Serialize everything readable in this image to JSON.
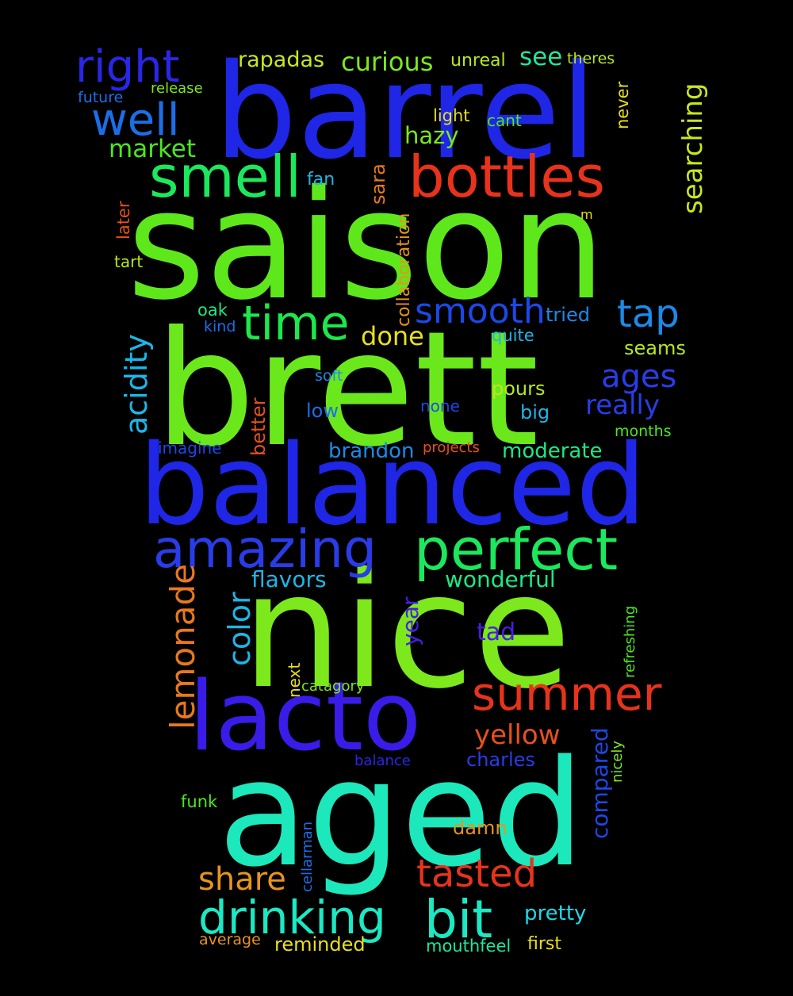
{
  "words": [
    {
      "text": "saison",
      "color": "#5ee81c"
    },
    {
      "text": "barrel",
      "color": "#1f26e6"
    },
    {
      "text": "brett",
      "color": "#6be81c"
    },
    {
      "text": "balanced",
      "color": "#1f26e6"
    },
    {
      "text": "nice",
      "color": "#7de81c"
    },
    {
      "text": "aged",
      "color": "#1ce8bc"
    },
    {
      "text": "lacto",
      "color": "#3a1ce8"
    },
    {
      "text": "bottles",
      "color": "#e8331c"
    },
    {
      "text": "smell",
      "color": "#1ce85e"
    },
    {
      "text": "perfect",
      "color": "#1ce85e"
    },
    {
      "text": "amazing",
      "color": "#2a3ce8"
    },
    {
      "text": "time",
      "color": "#1ce84b"
    },
    {
      "text": "right",
      "color": "#2a26e6"
    },
    {
      "text": "well",
      "color": "#1c6ee8"
    },
    {
      "text": "drinking",
      "color": "#1ce8c4"
    },
    {
      "text": "bit",
      "color": "#1ce8c4"
    },
    {
      "text": "summer",
      "color": "#e8331c"
    },
    {
      "text": "tasted",
      "color": "#e8331c"
    },
    {
      "text": "tap",
      "color": "#1c8ae8"
    },
    {
      "text": "smooth",
      "color": "#1c48e8"
    },
    {
      "text": "lemonade",
      "color": "#e8781c"
    },
    {
      "text": "acidity",
      "color": "#1cb6e8"
    },
    {
      "text": "color",
      "color": "#1cb6e8"
    },
    {
      "text": "share",
      "color": "#e8941c"
    },
    {
      "text": "searching",
      "color": "#c8e81c"
    },
    {
      "text": "ages",
      "color": "#2a3ce8"
    },
    {
      "text": "really",
      "color": "#2a3ce8"
    },
    {
      "text": "yellow",
      "color": "#e8501c"
    },
    {
      "text": "curious",
      "color": "#7de81c"
    },
    {
      "text": "rapadas",
      "color": "#c8e81c"
    },
    {
      "text": "market",
      "color": "#4be81c"
    },
    {
      "text": "see",
      "color": "#1ce8a0"
    },
    {
      "text": "hazy",
      "color": "#7de81c"
    },
    {
      "text": "compared",
      "color": "#1c48e8"
    },
    {
      "text": "done",
      "color": "#e8e01c"
    },
    {
      "text": "wonderful",
      "color": "#1ce884"
    },
    {
      "text": "moderate",
      "color": "#1ce884"
    },
    {
      "text": "brandon",
      "color": "#1c8ae8"
    },
    {
      "text": "flavors",
      "color": "#1cb6e8"
    },
    {
      "text": "year",
      "color": "#4a1ce8"
    },
    {
      "text": "tad",
      "color": "#4a1ce8"
    },
    {
      "text": "charles",
      "color": "#2a3ce8"
    },
    {
      "text": "pretty",
      "color": "#1cd8e8"
    },
    {
      "text": "reminded",
      "color": "#e8e01c"
    },
    {
      "text": "damn",
      "color": "#e8941c"
    },
    {
      "text": "seams",
      "color": "#b8e81c"
    },
    {
      "text": "pours",
      "color": "#b8e81c"
    },
    {
      "text": "low",
      "color": "#1c6ee8"
    },
    {
      "text": "big",
      "color": "#1cb6e8"
    },
    {
      "text": "tried",
      "color": "#1c8ae8"
    },
    {
      "text": "collaboration",
      "color": "#e8941c"
    },
    {
      "text": "sara",
      "color": "#e8781c"
    },
    {
      "text": "better",
      "color": "#e8501c"
    },
    {
      "text": "mouthfeel",
      "color": "#1ce8a0"
    },
    {
      "text": "first",
      "color": "#e8e01c"
    },
    {
      "text": "unreal",
      "color": "#b8e81c"
    },
    {
      "text": "theres",
      "color": "#b8e81c"
    },
    {
      "text": "never",
      "color": "#e8e01c"
    },
    {
      "text": "light",
      "color": "#e8e01c"
    },
    {
      "text": "cant",
      "color": "#4be81c"
    },
    {
      "text": "fan",
      "color": "#1cb6e8"
    },
    {
      "text": "later",
      "color": "#e8501c"
    },
    {
      "text": "tart",
      "color": "#b8e81c"
    },
    {
      "text": "m",
      "color": "#e8e01c"
    },
    {
      "text": "oak",
      "color": "#1ce884"
    },
    {
      "text": "kind",
      "color": "#1c6ee8"
    },
    {
      "text": "quite",
      "color": "#1cb6e8"
    },
    {
      "text": "soft",
      "color": "#1c8ae8"
    },
    {
      "text": "none",
      "color": "#1c48e8"
    },
    {
      "text": "months",
      "color": "#4be81c"
    },
    {
      "text": "imagine",
      "color": "#1c48e8"
    },
    {
      "text": "projects",
      "color": "#e8501c"
    },
    {
      "text": "next",
      "color": "#e8e01c"
    },
    {
      "text": "catagory",
      "color": "#7de81c"
    },
    {
      "text": "refreshing",
      "color": "#4be81c"
    },
    {
      "text": "nicely",
      "color": "#7de81c"
    },
    {
      "text": "balance",
      "color": "#2a26e6"
    },
    {
      "text": "funk",
      "color": "#4be81c"
    },
    {
      "text": "cellarman",
      "color": "#1c6ee8"
    },
    {
      "text": "average",
      "color": "#e8941c"
    },
    {
      "text": "release",
      "color": "#7de81c"
    },
    {
      "text": "future",
      "color": "#1c6ee8"
    }
  ]
}
